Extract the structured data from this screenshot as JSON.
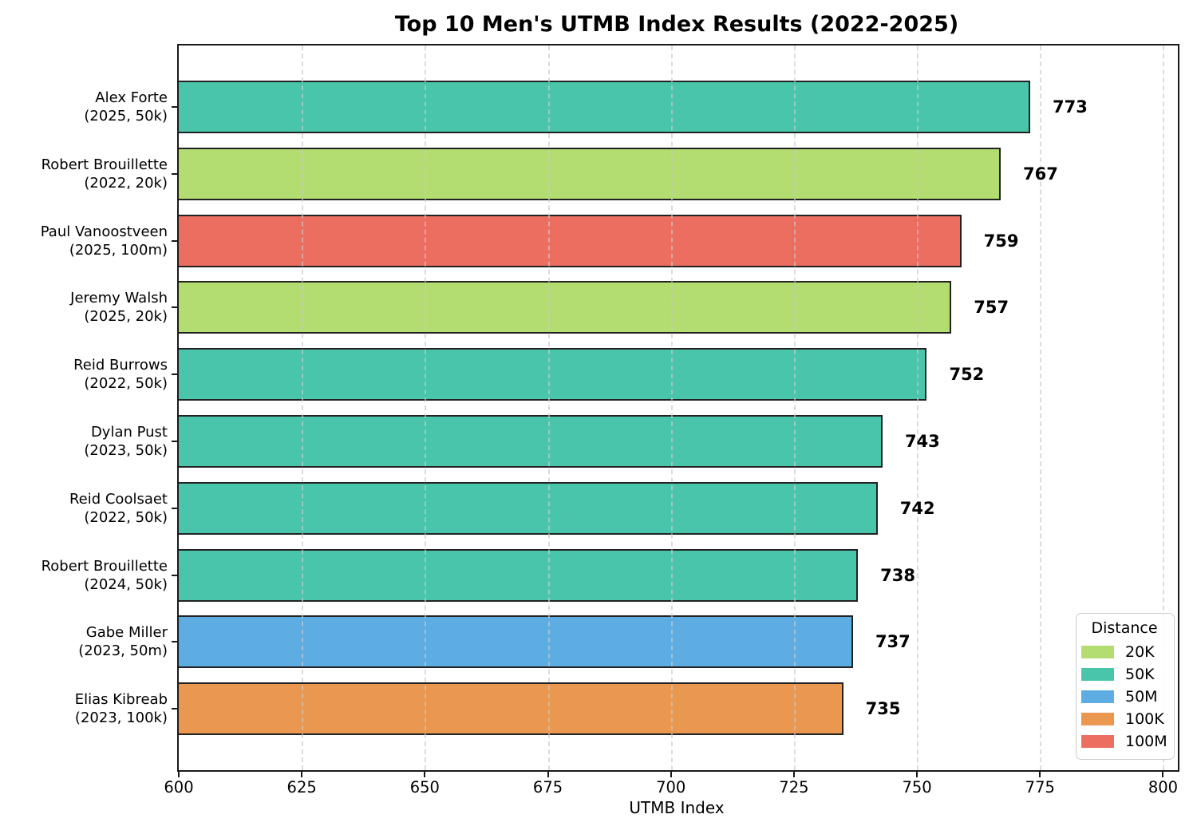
{
  "chart_data": {
    "type": "bar",
    "orientation": "horizontal",
    "title": "Top 10 Men's UTMB Index Results (2022-2025)",
    "xlabel": "UTMB Index",
    "xlim": [
      600,
      803
    ],
    "xticks": [
      600,
      625,
      650,
      675,
      700,
      725,
      750,
      775,
      800
    ],
    "grid": "vertical-dashed",
    "bar_edge_color": "#222222",
    "colors": {
      "20K": "#b3dd70",
      "50K": "#49c5ab",
      "50M": "#5dade2",
      "100K": "#ea974f",
      "100M": "#ec6e60"
    },
    "bars": [
      {
        "name": "Alex Forte",
        "sub": "(2025, 50k)",
        "value": 773,
        "distance": "50K"
      },
      {
        "name": "Robert Brouillette",
        "sub": "(2022, 20k)",
        "value": 767,
        "distance": "20K"
      },
      {
        "name": "Paul Vanoostveen",
        "sub": "(2025, 100m)",
        "value": 759,
        "distance": "100M"
      },
      {
        "name": "Jeremy Walsh",
        "sub": "(2025, 20k)",
        "value": 757,
        "distance": "20K"
      },
      {
        "name": "Reid Burrows",
        "sub": "(2022, 50k)",
        "value": 752,
        "distance": "50K"
      },
      {
        "name": "Dylan Pust",
        "sub": "(2023, 50k)",
        "value": 743,
        "distance": "50K"
      },
      {
        "name": "Reid Coolsaet",
        "sub": "(2022, 50k)",
        "value": 742,
        "distance": "50K"
      },
      {
        "name": "Robert Brouillette",
        "sub": "(2024, 50k)",
        "value": 738,
        "distance": "50K"
      },
      {
        "name": "Gabe Miller",
        "sub": "(2023, 50m)",
        "value": 737,
        "distance": "50M"
      },
      {
        "name": "Elias Kibreab",
        "sub": "(2023, 100k)",
        "value": 735,
        "distance": "100K"
      }
    ],
    "legend": {
      "title": "Distance",
      "position": "lower right",
      "entries": [
        {
          "label": "20K"
        },
        {
          "label": "50K"
        },
        {
          "label": "50M"
        },
        {
          "label": "100K"
        },
        {
          "label": "100M"
        }
      ]
    }
  }
}
